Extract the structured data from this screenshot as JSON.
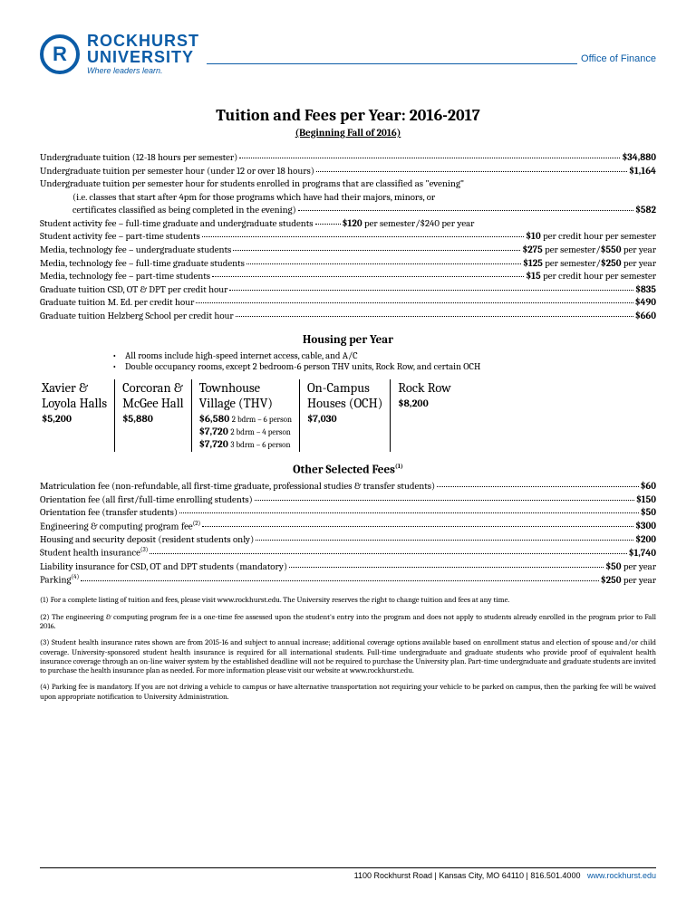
{
  "brand": {
    "monogram": "R",
    "name_line1": "ROCKHURST",
    "name_line2": "UNIVERSITY",
    "tagline": "Where leaders learn.",
    "office": "Office of Finance",
    "brand_color": "#0b5ca7"
  },
  "title": "Tuition and Fees per Year: 2016-2017",
  "subtitle": "(Beginning Fall of 2016)",
  "tuition_rows": [
    {
      "label": "Undergraduate tuition (12-18 hours per semester)",
      "value": "$34,880",
      "type": "dotted"
    },
    {
      "label": "Undergraduate tuition per semester hour (under 12 or over 18 hours)",
      "value": "$1,164",
      "type": "dotted"
    },
    {
      "label": "Undergraduate tuition per semester hour for students enrolled in programs that are classified as \"evening\"",
      "type": "plain"
    },
    {
      "label": "(i.e. classes that start after 4pm for those programs which have had their majors, minors, or",
      "type": "indent_plain"
    },
    {
      "label": "certificates classified as being completed in the evening)",
      "value": "$582",
      "type": "indent_dotted"
    },
    {
      "label": "Student activity fee – full-time graduate and undergraduate students",
      "value": "$120 per semester/$240 per year",
      "type": "dotted_mid"
    },
    {
      "label": "Student activity fee – part-time students",
      "value": "$10 per credit hour per semester",
      "type": "dotted"
    },
    {
      "label": "Media, technology fee – undergraduate students",
      "value": "$275 per semester/$550 per year",
      "type": "dotted"
    },
    {
      "label": "Media, technology fee – full-time graduate students",
      "value": "$125 per semester/$250 per year",
      "type": "dotted"
    },
    {
      "label": "Media, technology fee – part-time students",
      "value": "$15 per credit hour per semester",
      "type": "dotted"
    },
    {
      "label": "Graduate tuition CSD, OT & DPT per credit hour",
      "value": "$835",
      "type": "dotted"
    },
    {
      "label": "Graduate tuition M. Ed. per credit hour",
      "value": "$490",
      "type": "dotted"
    },
    {
      "label": "Graduate tuition Helzberg School per credit hour",
      "value": "$660",
      "type": "dotted"
    }
  ],
  "housing": {
    "heading": "Housing per Year",
    "bullets": [
      "All rooms include high-speed internet access, cable, and A/C",
      "Double occupancy rooms, except 2 bedroom-6 person THV units, Rock Row, and certain OCH"
    ],
    "columns": [
      {
        "name1": "Xavier &",
        "name2": "Loyola Halls",
        "lines": [
          "$5,200"
        ]
      },
      {
        "name1": "Corcoran &",
        "name2": "McGee Hall",
        "lines": [
          "$5,880"
        ]
      },
      {
        "name1": "Townhouse",
        "name2": "Village (THV)",
        "lines": [
          "$6,580 |2 bdrm – 6 person",
          "$7,720 |2 bdrm – 4 person",
          "$7,720 |3 bdrm – 6 person"
        ]
      },
      {
        "name1": "On-Campus",
        "name2": "Houses (OCH)",
        "lines": [
          "$7,030"
        ]
      },
      {
        "name1": "Rock Row",
        "name2": "",
        "lines": [
          "$8,200"
        ]
      }
    ]
  },
  "other_fees": {
    "heading": "Other Selected Fees",
    "heading_sup": "(1)",
    "rows": [
      {
        "label": "Matriculation fee (non-refundable, all first-time graduate, professional studies & transfer students)",
        "value": "$60"
      },
      {
        "label": "Orientation fee (all first/full-time enrolling students)",
        "value": "$150"
      },
      {
        "label": "Orientation fee (transfer students)",
        "value": "$50"
      },
      {
        "label": "Engineering & computing program fee(2)",
        "value": "$300",
        "sup": "(2)"
      },
      {
        "label": "Housing and security deposit (resident students only)",
        "value": "$200"
      },
      {
        "label": "Student health insurance(3)",
        "value": "$1,740",
        "sup": "(3)"
      },
      {
        "label": "Liability insurance for CSD, OT and DPT students (mandatory)",
        "value": "$50 per year"
      },
      {
        "label": "Parking(4)",
        "value": "$250 per year",
        "sup": "(4)"
      }
    ]
  },
  "footnotes": [
    "(1) For a complete listing of tuition and fees, please visit www.rockhurst.edu. The University reserves the right to change tuition and fees at any time.",
    "(2) The engineering & computing program fee is a one-time fee assessed upon the student's entry into the program and does not apply to students already enrolled in the program prior to Fall 2016.",
    "(3) Student health insurance rates shown are from 2015-16 and subject to annual increase; additional coverage options available based on enrollment status and election of spouse and/or child coverage. University-sponsored student health insurance is required for all international students. Full-time undergraduate and graduate students who provide proof of equivalent health insurance coverage through an on-line waiver system by the established deadline will not be required to purchase the University plan. Part-time undergraduate and graduate students are invited to purchase the health insurance plan as needed. For more information please visit our website at www.rockhurst.edu.",
    "(4) Parking fee is mandatory. If you are not driving a vehicle to campus or have alternative transportation not requiring your vehicle to be parked on campus, then the parking fee will be waived upon appropriate notification to University Administration."
  ],
  "footer": {
    "address": "1100 Rockhurst Road | Kansas City, MO 64110 | 816.501.4000",
    "url": "www.rockhurst.edu"
  }
}
